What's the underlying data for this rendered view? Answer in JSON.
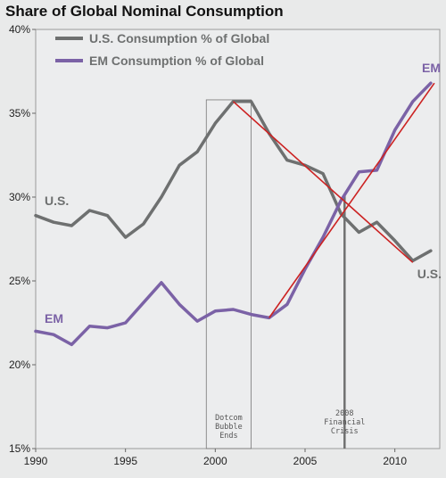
{
  "chart_data": {
    "type": "line",
    "title": "Share of Global Nominal Consumption",
    "xlabel": "",
    "ylabel": "",
    "xlim": [
      1990,
      2012.5
    ],
    "ylim": [
      15,
      40
    ],
    "x_ticks": [
      1990,
      1995,
      2000,
      2005,
      2010
    ],
    "y_ticks": [
      15,
      20,
      25,
      30,
      35,
      40
    ],
    "y_tick_labels": [
      "15%",
      "20%",
      "25%",
      "30%",
      "35%",
      "40%"
    ],
    "grid": false,
    "legend_position": "top-left",
    "series": [
      {
        "name": "U.S. Consumption % of Global",
        "label": "U.S.",
        "end_label": "U.S.",
        "color": "#6e7070",
        "x": [
          1990,
          1991,
          1992,
          1993,
          1994,
          1995,
          1996,
          1997,
          1998,
          1999,
          2000,
          2001,
          2002,
          2003,
          2004,
          2005,
          2006,
          2007,
          2008,
          2009,
          2010,
          2011,
          2012
        ],
        "y": [
          28.9,
          28.5,
          28.3,
          29.2,
          28.9,
          27.6,
          28.4,
          30.0,
          31.9,
          32.7,
          34.4,
          35.7,
          35.7,
          33.8,
          32.2,
          31.9,
          31.4,
          29.0,
          27.9,
          28.5,
          27.4,
          26.2,
          26.8
        ]
      },
      {
        "name": "EM Consumption % of Global",
        "label": "EM",
        "end_label": "EM",
        "color": "#7b62a6",
        "x": [
          1990,
          1991,
          1992,
          1993,
          1994,
          1995,
          1996,
          1997,
          1998,
          1999,
          2000,
          2001,
          2002,
          2003,
          2004,
          2005,
          2006,
          2007,
          2008,
          2009,
          2010,
          2011,
          2012
        ],
        "y": [
          22.0,
          21.8,
          21.2,
          22.3,
          22.2,
          22.5,
          23.7,
          24.9,
          23.6,
          22.6,
          23.2,
          23.3,
          23.0,
          22.8,
          23.6,
          25.7,
          27.6,
          29.8,
          31.5,
          31.6,
          34.0,
          35.7,
          36.8
        ]
      }
    ],
    "trend_lines": [
      {
        "color": "#cc2222",
        "x": [
          2001,
          2011
        ],
        "y": [
          35.7,
          26.1
        ]
      },
      {
        "color": "#cc2222",
        "x": [
          2003,
          2012.2
        ],
        "y": [
          22.8,
          36.8
        ]
      }
    ],
    "annotations": [
      {
        "type": "box",
        "x_start": 1999.5,
        "x_end": 2002,
        "y_top": 35.8,
        "lines": [
          "Dotcom",
          "Bubble",
          "Ends"
        ]
      },
      {
        "type": "vline",
        "x": 2007.2,
        "lines": [
          "2008",
          "Financial",
          "Crisis"
        ]
      }
    ]
  }
}
